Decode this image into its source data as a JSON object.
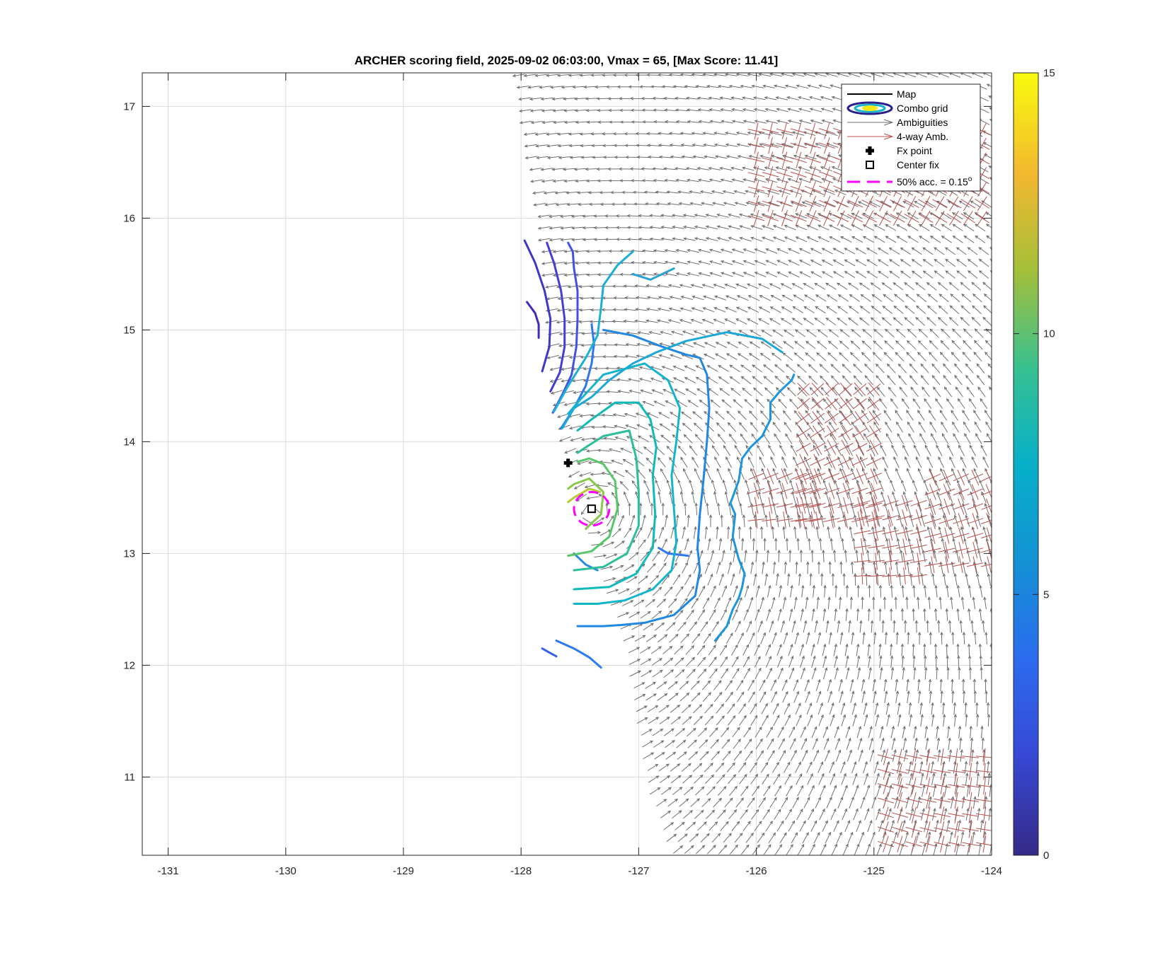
{
  "chart_data": {
    "type": "contour-vector-map",
    "title": "ARCHER scoring field, 2025-09-02 06:03:00, Vmax = 65, [Max Score: 11.41]",
    "xlim": [
      -131.22,
      -124.0
    ],
    "ylim": [
      10.3,
      17.3
    ],
    "xticks": [
      -131,
      -130,
      -129,
      -128,
      -127,
      -126,
      -125,
      -124
    ],
    "yticks": [
      11,
      12,
      13,
      14,
      15,
      16,
      17
    ],
    "grid": true,
    "colorbar": {
      "min": 0,
      "max": 15,
      "ticks": [
        0,
        5,
        10,
        15
      ],
      "colormap": "parula"
    },
    "fx_point": {
      "lon": -127.6,
      "lat": 13.81
    },
    "center_fix": {
      "lon": -127.4,
      "lat": 13.4
    },
    "accuracy_circle": {
      "lon": -127.4,
      "lat": 13.4,
      "radius_deg": 0.15,
      "color": "#ff00ff"
    },
    "storm_center": {
      "lon": -127.35,
      "lat": 13.5
    },
    "swath": {
      "left_edge": [
        [
          -128.05,
          17.3
        ],
        [
          -127.95,
          16.6
        ],
        [
          -127.85,
          16.0
        ],
        [
          -127.78,
          15.3
        ],
        [
          -127.75,
          14.6
        ],
        [
          -127.65,
          14.0
        ],
        [
          -127.5,
          13.4
        ],
        [
          -127.3,
          12.8
        ],
        [
          -127.1,
          12.2
        ],
        [
          -127.0,
          11.5
        ],
        [
          -126.9,
          10.9
        ],
        [
          -126.7,
          10.3
        ]
      ]
    },
    "four_way_regions": [
      {
        "lon": [
          -125.6,
          -124.9
        ],
        "lat": [
          13.3,
          14.6
        ]
      },
      {
        "lon": [
          -125.1,
          -124.6
        ],
        "lat": [
          12.8,
          13.5
        ]
      },
      {
        "lon": [
          -124.5,
          -124.0
        ],
        "lat": [
          12.9,
          13.8
        ]
      },
      {
        "lon": [
          -126.0,
          -125.5
        ],
        "lat": [
          13.3,
          13.7
        ]
      },
      {
        "lon": [
          -126.0,
          -124.0
        ],
        "lat": [
          16.0,
          16.9
        ]
      },
      {
        "lon": [
          -124.9,
          -124.0
        ],
        "lat": [
          10.4,
          11.2
        ]
      }
    ],
    "contours": [
      {
        "level": 1.3,
        "color": "#3d2fb8",
        "path": [
          [
            -127.95,
            15.25
          ],
          [
            -127.88,
            15.15
          ],
          [
            -127.85,
            15.05
          ],
          [
            -127.85,
            14.93
          ]
        ]
      },
      {
        "level": 1.8,
        "color": "#4037c8",
        "path": [
          [
            -127.97,
            15.8
          ],
          [
            -127.88,
            15.6
          ],
          [
            -127.8,
            15.35
          ],
          [
            -127.75,
            15.1
          ],
          [
            -127.76,
            14.85
          ],
          [
            -127.82,
            14.63
          ]
        ]
      },
      {
        "level": 2.4,
        "color": "#433fd6",
        "path": [
          [
            -127.78,
            15.78
          ],
          [
            -127.72,
            15.6
          ],
          [
            -127.66,
            15.35
          ],
          [
            -127.63,
            15.1
          ],
          [
            -127.63,
            14.85
          ],
          [
            -127.67,
            14.62
          ],
          [
            -127.75,
            14.45
          ]
        ]
      },
      {
        "level": 3.1,
        "color": "#4350e6",
        "path": [
          [
            -127.6,
            15.78
          ],
          [
            -127.56,
            15.7
          ],
          [
            -127.55,
            15.55
          ],
          [
            -127.52,
            15.35
          ],
          [
            -127.52,
            15.1
          ],
          [
            -127.53,
            14.85
          ],
          [
            -127.57,
            14.6
          ],
          [
            -127.65,
            14.42
          ],
          [
            -127.73,
            14.26
          ]
        ]
      },
      {
        "level": 3.9,
        "color": "#3a61ee",
        "path": [
          [
            -127.82,
            12.15
          ],
          [
            -127.77,
            12.12
          ],
          [
            -127.7,
            12.08
          ]
        ]
      },
      {
        "level": 4.4,
        "color": "#2f76f0",
        "path": [
          [
            -126.83,
            13.05
          ],
          [
            -126.75,
            13.0
          ],
          [
            -126.58,
            12.98
          ]
        ]
      },
      {
        "level": 4.4,
        "color": "#2f76f0",
        "path": [
          [
            -127.4,
            15.05
          ],
          [
            -127.38,
            14.88
          ],
          [
            -127.4,
            14.7
          ],
          [
            -127.45,
            14.5
          ],
          [
            -127.55,
            14.3
          ],
          [
            -127.66,
            14.12
          ]
        ]
      },
      {
        "level": 4.6,
        "color": "#2b7bef",
        "path": [
          [
            -127.7,
            12.22
          ],
          [
            -127.55,
            12.15
          ],
          [
            -127.42,
            12.07
          ],
          [
            -127.32,
            11.98
          ]
        ]
      },
      {
        "level": 5.0,
        "color": "#268bde",
        "path": [
          [
            -127.35,
            12.85
          ],
          [
            -127.45,
            12.9
          ],
          [
            -127.5,
            12.95
          ],
          [
            -127.55,
            13.0
          ]
        ]
      },
      {
        "level": 5.2,
        "color": "#2088e0",
        "path": [
          [
            -127.52,
            12.35
          ],
          [
            -127.3,
            12.35
          ],
          [
            -127.15,
            12.36
          ],
          [
            -126.95,
            12.38
          ],
          [
            -126.7,
            12.45
          ],
          [
            -126.52,
            12.62
          ],
          [
            -126.48,
            12.85
          ],
          [
            -126.5,
            13.05
          ],
          [
            -126.48,
            13.35
          ],
          [
            -126.45,
            13.65
          ],
          [
            -126.42,
            14.0
          ],
          [
            -126.4,
            14.3
          ],
          [
            -126.42,
            14.6
          ],
          [
            -126.48,
            14.75
          ],
          [
            -126.6,
            14.78
          ],
          [
            -126.8,
            14.85
          ],
          [
            -127.05,
            14.95
          ],
          [
            -127.3,
            15.0
          ]
        ]
      },
      {
        "level": 5.4,
        "color": "#1b95dc",
        "path": [
          [
            -126.35,
            12.22
          ],
          [
            -126.25,
            12.35
          ],
          [
            -126.2,
            12.5
          ],
          [
            -126.15,
            12.6
          ],
          [
            -126.12,
            12.7
          ],
          [
            -126.1,
            12.82
          ],
          [
            -126.15,
            12.95
          ],
          [
            -126.2,
            13.15
          ],
          [
            -126.18,
            13.35
          ],
          [
            -126.22,
            13.45
          ],
          [
            -126.15,
            13.65
          ],
          [
            -126.12,
            13.85
          ],
          [
            -126.05,
            13.95
          ],
          [
            -125.95,
            14.05
          ],
          [
            -125.88,
            14.2
          ],
          [
            -125.88,
            14.35
          ],
          [
            -125.8,
            14.45
          ],
          [
            -125.7,
            14.55
          ],
          [
            -125.68,
            14.6
          ]
        ]
      },
      {
        "level": 5.8,
        "color": "#2aa2d6",
        "path": [
          [
            -127.05,
            15.5
          ],
          [
            -126.9,
            15.45
          ],
          [
            -126.7,
            15.55
          ]
        ]
      },
      {
        "level": 6.2,
        "color": "#1ea8d8",
        "path": [
          [
            -127.65,
            14.12
          ],
          [
            -127.55,
            14.3
          ],
          [
            -127.4,
            14.4
          ],
          [
            -127.25,
            14.55
          ],
          [
            -127.05,
            14.7
          ],
          [
            -126.85,
            14.8
          ],
          [
            -126.6,
            14.9
          ],
          [
            -126.25,
            14.98
          ],
          [
            -125.95,
            14.92
          ],
          [
            -125.78,
            14.8
          ]
        ]
      },
      {
        "level": 6.2,
        "color": "#1ab0d4",
        "path": [
          [
            -127.72,
            14.27
          ],
          [
            -127.6,
            14.5
          ],
          [
            -127.45,
            14.75
          ],
          [
            -127.35,
            14.95
          ],
          [
            -127.32,
            15.2
          ],
          [
            -127.3,
            15.4
          ],
          [
            -127.18,
            15.58
          ],
          [
            -127.05,
            15.7
          ]
        ]
      },
      {
        "level": 6.6,
        "color": "#14b4cc",
        "path": [
          [
            -127.55,
            12.55
          ],
          [
            -127.35,
            12.55
          ],
          [
            -127.12,
            12.58
          ],
          [
            -126.88,
            12.68
          ],
          [
            -126.72,
            12.85
          ],
          [
            -126.68,
            13.1
          ],
          [
            -126.7,
            13.4
          ],
          [
            -126.72,
            13.7
          ],
          [
            -126.68,
            14.0
          ],
          [
            -126.65,
            14.3
          ],
          [
            -126.75,
            14.55
          ],
          [
            -126.95,
            14.7
          ],
          [
            -127.3,
            14.6
          ],
          [
            -127.52,
            14.35
          ],
          [
            -127.6,
            14.25
          ]
        ]
      },
      {
        "level": 7.3,
        "color": "#0fbab8",
        "path": [
          [
            -127.55,
            12.68
          ],
          [
            -127.25,
            12.7
          ],
          [
            -127.02,
            12.82
          ],
          [
            -126.88,
            13.05
          ],
          [
            -126.86,
            13.35
          ],
          [
            -126.88,
            13.7
          ],
          [
            -126.85,
            13.95
          ],
          [
            -126.9,
            14.2
          ],
          [
            -127.0,
            14.35
          ],
          [
            -127.2,
            14.35
          ],
          [
            -127.4,
            14.2
          ],
          [
            -127.52,
            14.1
          ]
        ]
      },
      {
        "level": 8.1,
        "color": "#2dbf9a",
        "path": [
          [
            -127.55,
            12.85
          ],
          [
            -127.3,
            12.88
          ],
          [
            -127.1,
            13.0
          ],
          [
            -127.0,
            13.25
          ],
          [
            -127.0,
            13.55
          ],
          [
            -127.02,
            13.85
          ],
          [
            -127.08,
            14.1
          ],
          [
            -127.3,
            14.05
          ],
          [
            -127.45,
            13.95
          ],
          [
            -127.52,
            13.9
          ]
        ]
      },
      {
        "level": 9.0,
        "color": "#58c66b",
        "path": [
          [
            -127.6,
            12.98
          ],
          [
            -127.4,
            13.02
          ],
          [
            -127.25,
            13.15
          ],
          [
            -127.18,
            13.4
          ],
          [
            -127.2,
            13.65
          ],
          [
            -127.3,
            13.8
          ],
          [
            -127.42,
            13.85
          ],
          [
            -127.52,
            13.82
          ]
        ]
      },
      {
        "level": 9.8,
        "color": "#87c94a",
        "path": [
          [
            -127.45,
            13.22
          ],
          [
            -127.32,
            13.35
          ],
          [
            -127.3,
            13.55
          ],
          [
            -127.42,
            13.67
          ],
          [
            -127.55,
            13.62
          ],
          [
            -127.6,
            13.58
          ]
        ]
      },
      {
        "level": 10.6,
        "color": "#b5c936",
        "path": [
          [
            -127.6,
            13.46
          ],
          [
            -127.55,
            13.5
          ],
          [
            -127.42,
            13.58
          ],
          [
            -127.33,
            13.55
          ]
        ]
      }
    ],
    "legend": {
      "position": "top-right",
      "items": [
        {
          "label": "Map",
          "symbol": "line",
          "color": "#000000"
        },
        {
          "label": "Combo grid",
          "symbol": "contour-ellipse",
          "color": "#1e2f96"
        },
        {
          "label": "Ambiguities",
          "symbol": "arrow",
          "color": "#6e6e6e"
        },
        {
          "label": "4-way Amb.",
          "symbol": "arrow",
          "color": "#b85050"
        },
        {
          "label": "Fx point",
          "symbol": "cross",
          "color": "#000000"
        },
        {
          "label": "Center fix",
          "symbol": "square",
          "color": "#000000"
        },
        {
          "label": "50% acc. = 0.15",
          "superscript": "o",
          "symbol": "dashed-line",
          "color": "#ff00ff"
        }
      ]
    }
  }
}
